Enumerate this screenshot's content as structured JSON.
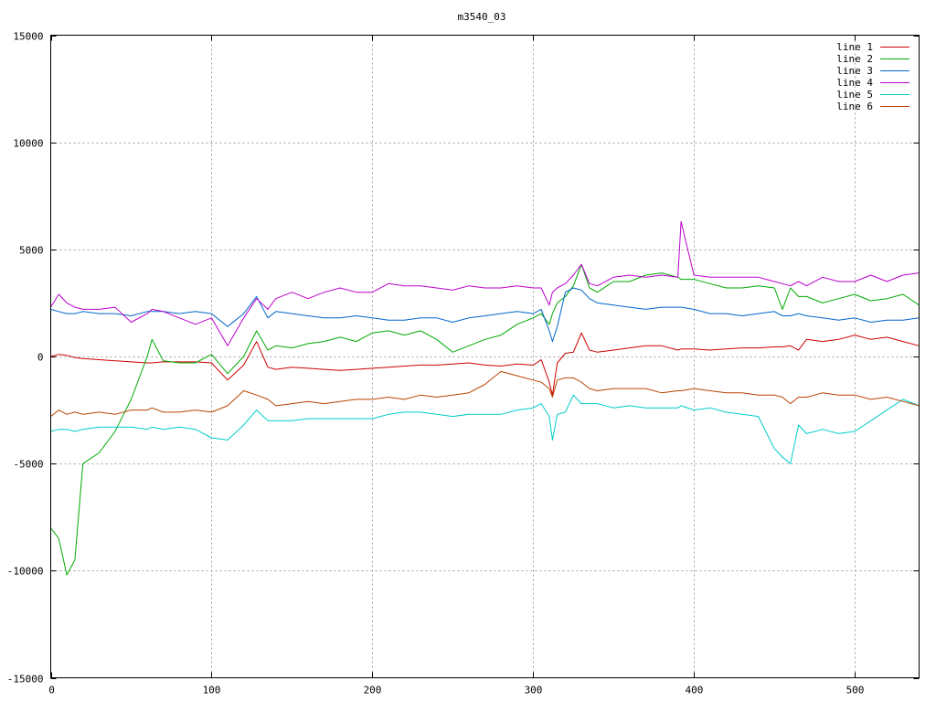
{
  "chart_data": {
    "type": "line",
    "title": "m3540_03",
    "xlabel": "",
    "ylabel": "",
    "xlim": [
      0,
      540
    ],
    "ylim": [
      -15000,
      15000
    ],
    "xticks": [
      0,
      100,
      200,
      300,
      400,
      500
    ],
    "yticks": [
      -15000,
      -10000,
      -5000,
      0,
      5000,
      10000,
      15000
    ],
    "grid": true,
    "legend_position": "top-right",
    "x": [
      0,
      5,
      10,
      15,
      20,
      30,
      40,
      50,
      60,
      63,
      70,
      80,
      90,
      100,
      110,
      120,
      128,
      135,
      140,
      150,
      160,
      170,
      180,
      190,
      200,
      210,
      220,
      230,
      240,
      250,
      260,
      270,
      280,
      290,
      300,
      305,
      310,
      312,
      315,
      320,
      325,
      330,
      335,
      340,
      350,
      360,
      370,
      380,
      390,
      392,
      400,
      410,
      420,
      430,
      440,
      450,
      455,
      460,
      465,
      470,
      480,
      490,
      500,
      510,
      520,
      530,
      540
    ],
    "series": [
      {
        "name": "line 1",
        "color": "#cc0000",
        "values": [
          0,
          100,
          50,
          -50,
          -100,
          -150,
          -200,
          -250,
          -300,
          -300,
          -250,
          -250,
          -250,
          -300,
          -1100,
          -400,
          700,
          -500,
          -600,
          -500,
          -550,
          -600,
          -650,
          -600,
          -550,
          -500,
          -450,
          -400,
          -400,
          -350,
          -300,
          -400,
          -450,
          -350,
          -400,
          -150,
          -1200,
          -1800,
          -300,
          150,
          200,
          1100,
          300,
          200,
          300,
          400,
          500,
          500,
          300,
          350,
          350,
          300,
          350,
          400,
          400,
          450,
          450,
          500,
          300,
          800,
          700,
          800,
          1000,
          800,
          900,
          700,
          500
        ]
      },
      {
        "name": "line 2",
        "color": "#00aa00",
        "values": [
          -8000,
          -8500,
          -10200,
          -9500,
          -5000,
          -4500,
          -3500,
          -2000,
          0,
          800,
          -200,
          -300,
          -300,
          100,
          -800,
          0,
          1200,
          300,
          500,
          400,
          600,
          700,
          900,
          700,
          1100,
          1200,
          1000,
          1200,
          800,
          200,
          500,
          800,
          1000,
          1500,
          1800,
          2000,
          1500,
          2000,
          2500,
          2800,
          3300,
          4300,
          3200,
          3000,
          3500,
          3500,
          3800,
          3900,
          3700,
          3600,
          3600,
          3400,
          3200,
          3200,
          3300,
          3200,
          2200,
          3200,
          2800,
          2800,
          2500,
          2700,
          2900,
          2600,
          2700,
          2900,
          2400
        ]
      },
      {
        "name": "line 3",
        "color": "#0066cc",
        "values": [
          2200,
          2100,
          2000,
          2000,
          2100,
          2000,
          2000,
          1900,
          2100,
          2100,
          2100,
          2000,
          2100,
          2000,
          1400,
          2000,
          2800,
          1800,
          2100,
          2000,
          1900,
          1800,
          1800,
          1900,
          1800,
          1700,
          1700,
          1800,
          1800,
          1600,
          1800,
          1900,
          2000,
          2100,
          2000,
          2200,
          1200,
          700,
          1400,
          3000,
          3200,
          3100,
          2700,
          2500,
          2400,
          2300,
          2200,
          2300,
          2300,
          2300,
          2200,
          2000,
          2000,
          1900,
          2000,
          2100,
          1900,
          1900,
          2000,
          1900,
          1800,
          1700,
          1800,
          1600,
          1700,
          1700,
          1800
        ]
      },
      {
        "name": "line 4",
        "color": "#bb00cc",
        "values": [
          2300,
          2900,
          2500,
          2300,
          2200,
          2200,
          2300,
          1600,
          2000,
          2200,
          2100,
          1800,
          1500,
          1800,
          500,
          1800,
          2700,
          2200,
          2700,
          3000,
          2700,
          3000,
          3200,
          3000,
          3000,
          3400,
          3300,
          3300,
          3200,
          3100,
          3300,
          3200,
          3200,
          3300,
          3200,
          3200,
          2400,
          3000,
          3200,
          3400,
          3800,
          4300,
          3400,
          3300,
          3700,
          3800,
          3700,
          3800,
          3700,
          6300,
          3800,
          3700,
          3700,
          3700,
          3700,
          3500,
          3400,
          3300,
          3500,
          3300,
          3700,
          3500,
          3500,
          3800,
          3500,
          3800,
          3900
        ]
      },
      {
        "name": "line 5",
        "color": "#00cccc",
        "values": [
          -3500,
          -3400,
          -3400,
          -3500,
          -3400,
          -3300,
          -3300,
          -3300,
          -3400,
          -3300,
          -3400,
          -3300,
          -3400,
          -3800,
          -3900,
          -3200,
          -2500,
          -3000,
          -3000,
          -3000,
          -2900,
          -2900,
          -2900,
          -2900,
          -2900,
          -2700,
          -2600,
          -2600,
          -2700,
          -2800,
          -2700,
          -2700,
          -2700,
          -2500,
          -2400,
          -2200,
          -2800,
          -3900,
          -2700,
          -2600,
          -1800,
          -2200,
          -2200,
          -2200,
          -2400,
          -2300,
          -2400,
          -2400,
          -2400,
          -2300,
          -2500,
          -2400,
          -2600,
          -2700,
          -2800,
          -4300,
          -4700,
          -5000,
          -3200,
          -3600,
          -3400,
          -3600,
          -3500,
          -3000,
          -2500,
          -2000,
          -2300
        ]
      },
      {
        "name": "line 6",
        "color": "#b84400",
        "values": [
          -2800,
          -2500,
          -2700,
          -2600,
          -2700,
          -2600,
          -2700,
          -2500,
          -2500,
          -2400,
          -2600,
          -2600,
          -2500,
          -2600,
          -2300,
          -1600,
          -1800,
          -2000,
          -2300,
          -2200,
          -2100,
          -2200,
          -2100,
          -2000,
          -2000,
          -1900,
          -2000,
          -1800,
          -1900,
          -1800,
          -1700,
          -1300,
          -700,
          -900,
          -1100,
          -1200,
          -1500,
          -1900,
          -1100,
          -1000,
          -1000,
          -1200,
          -1500,
          -1600,
          -1500,
          -1500,
          -1500,
          -1700,
          -1600,
          -1600,
          -1500,
          -1600,
          -1700,
          -1700,
          -1800,
          -1800,
          -1900,
          -2200,
          -1900,
          -1900,
          -1700,
          -1800,
          -1800,
          -2000,
          -1900,
          -2100,
          -2300
        ]
      }
    ]
  }
}
